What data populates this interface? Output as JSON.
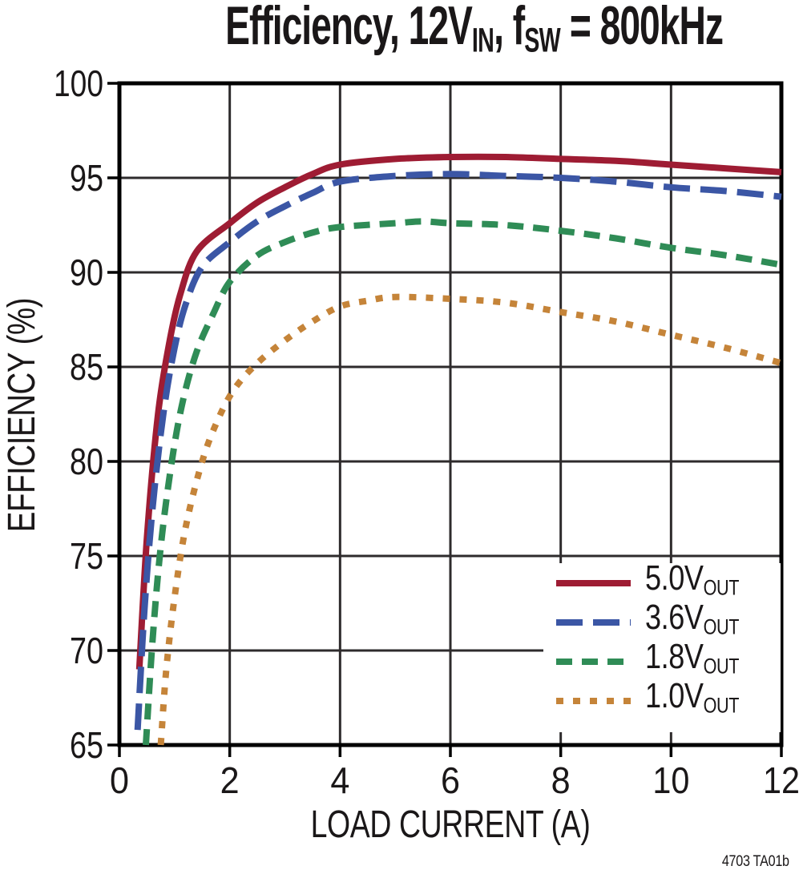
{
  "page": {
    "background": "#ffffff",
    "footer_note": "4703 TA01b"
  },
  "title": {
    "part1": "Efficiency, 12V",
    "sub1": "IN",
    "part2": ", f",
    "sub2": "SW",
    "part3": " = 800kHz"
  },
  "chart_data": {
    "type": "line",
    "title": "Efficiency, 12VIN, fSW = 800kHz",
    "xlabel": "LOAD CURRENT (A)",
    "ylabel": "EFFICIENCY (%)",
    "xlim": [
      0,
      12
    ],
    "ylim": [
      65,
      100
    ],
    "xticks": [
      0,
      2,
      4,
      6,
      8,
      10,
      12
    ],
    "yticks": [
      65,
      70,
      75,
      80,
      85,
      90,
      95,
      100
    ],
    "grid": true,
    "legend_position": "inside-bottom-right",
    "frame_color": "#000000",
    "grid_color": "#2e2b2c",
    "text_color": "#1a1718",
    "series": [
      {
        "id": "5v0",
        "name": "5.0VOUT",
        "label": "5.0V",
        "label_sub": "OUT",
        "color": "#9e1c33",
        "width": 8,
        "dash": [],
        "points": [
          [
            0.36,
            69
          ],
          [
            0.5,
            76
          ],
          [
            0.7,
            82.5
          ],
          [
            0.9,
            86.2
          ],
          [
            1.1,
            88.8
          ],
          [
            1.4,
            91.1
          ],
          [
            2,
            92.6
          ],
          [
            2.5,
            93.7
          ],
          [
            3,
            94.5
          ],
          [
            3.5,
            95.2
          ],
          [
            4,
            95.7
          ],
          [
            5,
            96.0
          ],
          [
            6,
            96.1
          ],
          [
            7,
            96.1
          ],
          [
            8,
            96.0
          ],
          [
            9,
            95.9
          ],
          [
            10,
            95.7
          ],
          [
            11,
            95.5
          ],
          [
            12,
            95.3
          ]
        ]
      },
      {
        "id": "3v6",
        "name": "3.6VOUT",
        "label": "3.6V",
        "label_sub": "OUT",
        "color": "#3b56a5",
        "width": 8,
        "dash": [
          33,
          13
        ],
        "points": [
          [
            0.33,
            65.8
          ],
          [
            0.45,
            72
          ],
          [
            0.6,
            77.5
          ],
          [
            0.8,
            82.6
          ],
          [
            1,
            86
          ],
          [
            1.2,
            88.3
          ],
          [
            1.5,
            90.3
          ],
          [
            2,
            91.6
          ],
          [
            2.5,
            92.7
          ],
          [
            3,
            93.5
          ],
          [
            3.5,
            94.2
          ],
          [
            4,
            94.8
          ],
          [
            5,
            95.1
          ],
          [
            6,
            95.2
          ],
          [
            7,
            95.1
          ],
          [
            8,
            95.0
          ],
          [
            9,
            94.8
          ],
          [
            10,
            94.5
          ],
          [
            11,
            94.3
          ],
          [
            12,
            94.0
          ]
        ]
      },
      {
        "id": "1v8",
        "name": "1.8VOUT",
        "label": "1.8V",
        "label_sub": "OUT",
        "color": "#2f8c56",
        "width": 8,
        "dash": [
          20,
          12
        ],
        "points": [
          [
            0.48,
            65
          ],
          [
            0.6,
            70.5
          ],
          [
            0.75,
            75.5
          ],
          [
            0.95,
            80
          ],
          [
            1.15,
            83.2
          ],
          [
            1.4,
            85.8
          ],
          [
            1.7,
            87.8
          ],
          [
            2,
            89.5
          ],
          [
            2.5,
            90.9
          ],
          [
            3,
            91.6
          ],
          [
            3.5,
            92.1
          ],
          [
            4,
            92.4
          ],
          [
            5,
            92.6
          ],
          [
            5.5,
            92.7
          ],
          [
            6,
            92.6
          ],
          [
            7,
            92.5
          ],
          [
            8,
            92.2
          ],
          [
            9,
            91.8
          ],
          [
            10,
            91.3
          ],
          [
            11,
            90.9
          ],
          [
            12,
            90.4
          ]
        ]
      },
      {
        "id": "1v0",
        "name": "1.0VOUT",
        "label": "1.0V",
        "label_sub": "OUT",
        "color": "#c58439",
        "width": 8,
        "dash": [
          9,
          12
        ],
        "points": [
          [
            0.75,
            65
          ],
          [
            0.85,
            69
          ],
          [
            1,
            72.8
          ],
          [
            1.2,
            76.5
          ],
          [
            1.5,
            80
          ],
          [
            1.8,
            82.3
          ],
          [
            2.1,
            83.9
          ],
          [
            2.5,
            85.2
          ],
          [
            3,
            86.4
          ],
          [
            3.5,
            87.4
          ],
          [
            4,
            88.2
          ],
          [
            4.5,
            88.5
          ],
          [
            5,
            88.7
          ],
          [
            6,
            88.6
          ],
          [
            7,
            88.4
          ],
          [
            8,
            87.9
          ],
          [
            9,
            87.4
          ],
          [
            10,
            86.7
          ],
          [
            11,
            86.0
          ],
          [
            12,
            85.2
          ]
        ]
      }
    ]
  }
}
